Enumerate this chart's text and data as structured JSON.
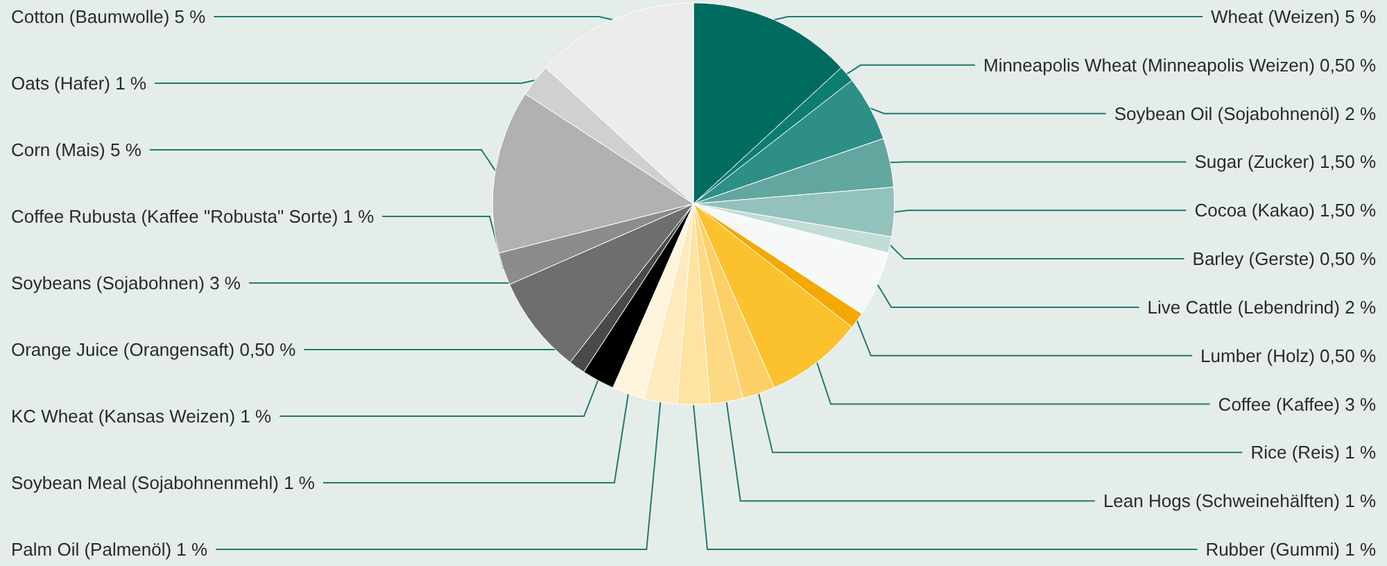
{
  "chart_data": {
    "type": "pie",
    "legend": false,
    "categories": [
      "Wheat (Weizen)",
      "Minneapolis Wheat (Minneapolis Weizen)",
      "Soybean Oil (Sojabohnenöl)",
      "Sugar (Zucker)",
      "Cocoa (Kakao)",
      "Barley (Gerste)",
      "Live Cattle (Lebendrind)",
      "Lumber (Holz)",
      "Coffee (Kaffee)",
      "Rice (Reis)",
      "Lean Hogs (Schweinehälften)",
      "Rubber (Gummi)",
      "Palm Oil (Palmenöl)",
      "Soybean Meal (Sojabohnenmehl)",
      "KC Wheat (Kansas Weizen)",
      "Orange Juice (Orangensaft)",
      "Soybeans (Sojabohnen)",
      "Coffee Rubusta (Kaffee \"Robusta\" Sorte)",
      "Corn (Mais)",
      "Oats (Hafer)",
      "Cotton (Baumwolle)"
    ],
    "values": [
      5,
      0.5,
      2,
      1.5,
      1.5,
      0.5,
      2,
      0.5,
      3,
      1,
      1,
      1,
      1,
      1,
      1,
      0.5,
      3,
      1,
      5,
      1,
      5
    ],
    "value_labels": [
      "5 %",
      "0,50 %",
      "2 %",
      "1,50 %",
      "1,50 %",
      "0,50 %",
      "2 %",
      "0,50 %",
      "3 %",
      "1 %",
      "1 %",
      "1 %",
      "1 %",
      "1 %",
      "1 %",
      "0,50 %",
      "3 %",
      "1 %",
      "5 %",
      "1 %",
      "5 %"
    ],
    "colors": [
      "#006b5f",
      "#0e7d71",
      "#2e8f86",
      "#62a79f",
      "#93c1bb",
      "#c2dcd8",
      "#f7f9f8",
      "#f5a800",
      "#fcc22e",
      "#fdd067",
      "#fdd984",
      "#fee3a2",
      "#feeabd",
      "#fff5dc",
      "#000000",
      "#4a4a4a",
      "#6e6e6e",
      "#8c8c8c",
      "#b1b1b1",
      "#d0d0d0",
      "#ececec"
    ]
  }
}
